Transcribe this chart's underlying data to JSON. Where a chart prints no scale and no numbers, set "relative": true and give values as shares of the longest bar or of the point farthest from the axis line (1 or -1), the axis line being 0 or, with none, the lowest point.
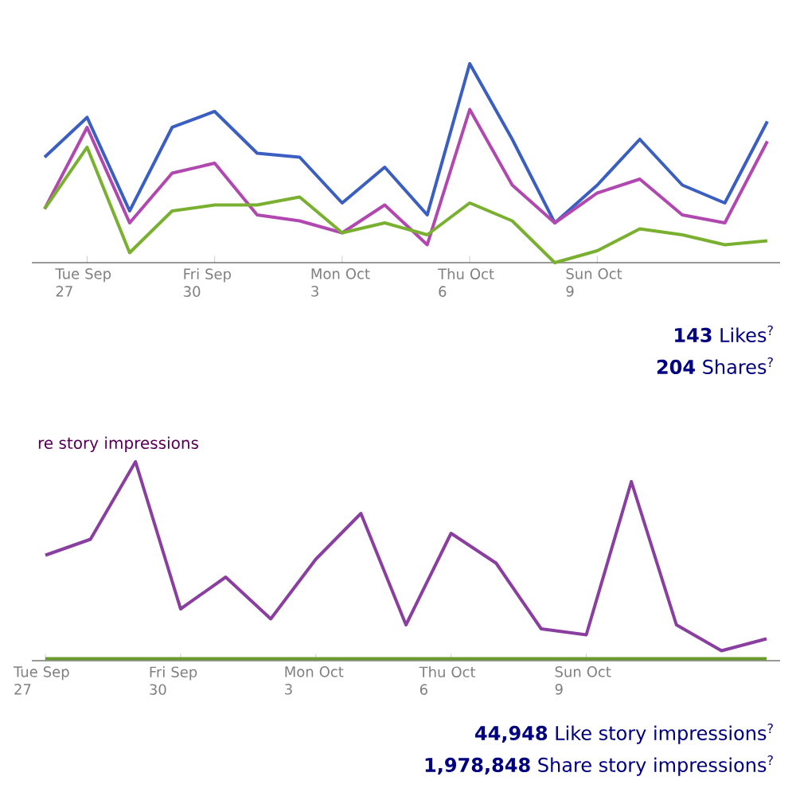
{
  "chart_data": [
    {
      "type": "line",
      "relative": true,
      "line_style": "solid",
      "marker": "none",
      "categories": [
        null,
        "Tue Sep 27",
        null,
        null,
        "Fri Sep 30",
        null,
        null,
        "Mon Oct 3",
        null,
        null,
        "Thu Oct 6",
        null,
        null,
        "Sun Oct 9",
        null,
        null,
        null,
        null
      ],
      "series": [
        {
          "color": "#3b5fc0",
          "values": [
            0.53,
            0.73,
            0.26,
            0.68,
            0.76,
            0.55,
            0.53,
            0.3,
            0.48,
            0.24,
            1.0,
            0.62,
            0.2,
            0.39,
            0.62,
            0.39,
            0.3,
            0.71
          ]
        },
        {
          "color": "#b048b0",
          "values": [
            0.27,
            0.68,
            0.2,
            0.45,
            0.5,
            0.24,
            0.21,
            0.15,
            0.29,
            0.09,
            0.77,
            0.39,
            0.2,
            0.35,
            0.42,
            0.24,
            0.2,
            0.61
          ]
        },
        {
          "color": "#7ab030",
          "values": [
            0.27,
            0.58,
            0.05,
            0.26,
            0.29,
            0.29,
            0.33,
            0.15,
            0.2,
            0.14,
            0.3,
            0.21,
            0.0,
            0.06,
            0.17,
            0.14,
            0.09,
            0.11
          ]
        }
      ],
      "annotations": [
        "**143** Likes$^{?}$",
        "**204** Shares$^{?}$"
      ]
    },
    {
      "type": "line",
      "relative": true,
      "line_style": "solid",
      "marker": "none",
      "subtitle": "re story impressions",
      "categories": [
        "Tue Sep 27",
        null,
        null,
        "Fri Sep 30",
        null,
        null,
        "Mon Oct 3",
        null,
        null,
        "Thu Oct 6",
        null,
        null,
        "Sun Oct 9",
        null,
        null,
        null,
        null
      ],
      "series": [
        {
          "color": "#8a3fa0",
          "values": [
            0.53,
            0.61,
            1.0,
            0.26,
            0.42,
            0.21,
            0.51,
            0.74,
            0.18,
            0.64,
            0.49,
            0.16,
            0.13,
            0.9,
            0.18,
            0.05,
            0.11
          ]
        },
        {
          "color": "#6a9a30",
          "values": [
            0.01,
            0.01,
            0.01,
            0.01,
            0.01,
            0.01,
            0.01,
            0.01,
            0.01,
            0.01,
            0.01,
            0.01,
            0.01,
            0.01,
            0.01,
            0.01,
            0.01
          ]
        }
      ],
      "annotations": [
        "**44,948** Like story impressions$^{?}$",
        "**1,978,848** Share story impressions$^{?}$"
      ]
    }
  ]
}
